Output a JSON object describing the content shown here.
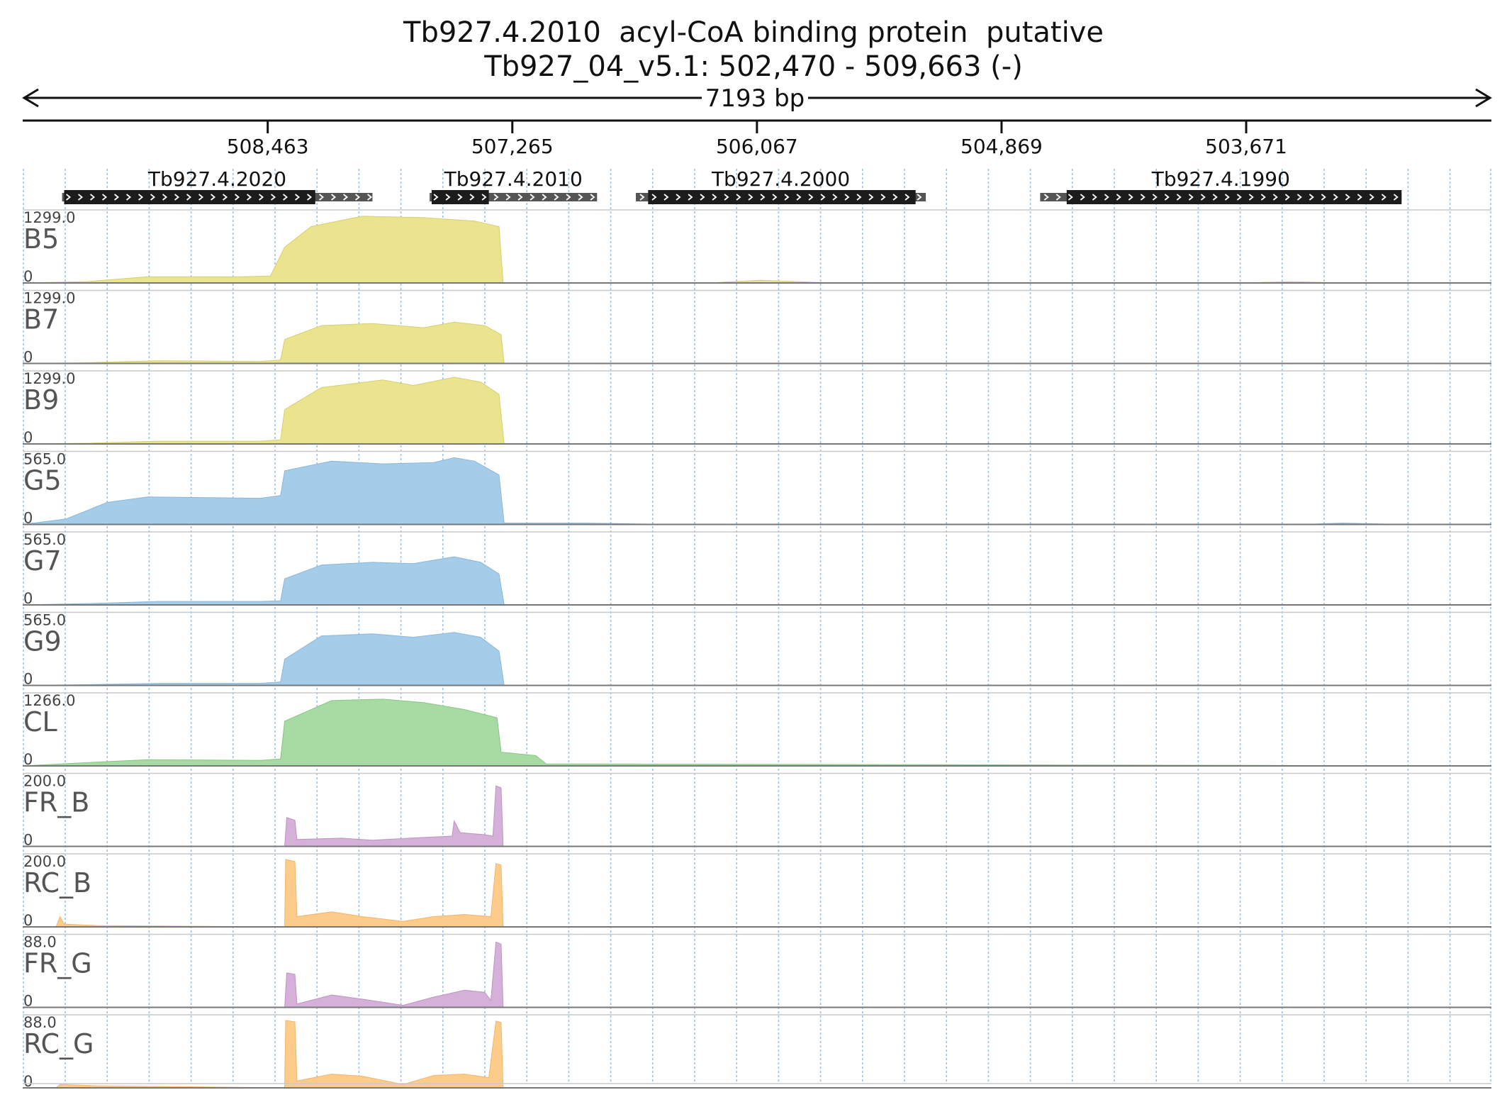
{
  "header": {
    "title": "Tb927.4.2010  acyl-CoA binding protein  putative",
    "location": "Tb927_04_v5.1: 502,470 - 509,663 (-)"
  },
  "ruler": {
    "span_label": "7193 bp",
    "start_bp": 509663,
    "end_bp": 502470,
    "ticks": [
      {
        "bp": 508463,
        "label": "508,463"
      },
      {
        "bp": 507265,
        "label": "507,265"
      },
      {
        "bp": 506067,
        "label": "506,067"
      },
      {
        "bp": 504869,
        "label": "504,869"
      },
      {
        "bp": 503671,
        "label": "503,671"
      }
    ]
  },
  "genes": [
    {
      "name": "Tb927.4.2020",
      "start": 509470,
      "end": 507950,
      "cds_start": 509460,
      "cds_end": 508230
    },
    {
      "name": "Tb927.4.2010",
      "start": 507670,
      "end": 506850,
      "cds_start": 507660,
      "cds_end": 507380
    },
    {
      "name": "Tb927.4.2000",
      "start": 506660,
      "end": 505240,
      "cds_start": 506600,
      "cds_end": 505290
    },
    {
      "name": "Tb927.4.1990",
      "start": 504680,
      "end": 502910,
      "cds_start": 504550,
      "cds_end": 502910
    }
  ],
  "tracks": [
    {
      "name": "B5",
      "max_label": "1299.0",
      "zero_label": "0",
      "color": "#ebe48f",
      "stroke": "#d7cf6e",
      "profile": [
        [
          509663,
          0
        ],
        [
          509350,
          0.02
        ],
        [
          509050,
          0.09
        ],
        [
          508600,
          0.09
        ],
        [
          508450,
          0.1
        ],
        [
          508380,
          0.52
        ],
        [
          508250,
          0.82
        ],
        [
          508000,
          0.97
        ],
        [
          507700,
          0.95
        ],
        [
          507450,
          0.9
        ],
        [
          507330,
          0.82
        ],
        [
          507310,
          0.0
        ],
        [
          506300,
          0.0
        ],
        [
          506050,
          0.04
        ],
        [
          505700,
          0.0
        ],
        [
          503700,
          0.0
        ],
        [
          503450,
          0.02
        ],
        [
          503200,
          0.0
        ],
        [
          502470,
          0
        ]
      ]
    },
    {
      "name": "B7",
      "max_label": "1299.0",
      "zero_label": "0",
      "color": "#ebe48f",
      "stroke": "#d7cf6e",
      "profile": [
        [
          509663,
          0
        ],
        [
          509350,
          0.01
        ],
        [
          509000,
          0.04
        ],
        [
          508500,
          0.03
        ],
        [
          508400,
          0.05
        ],
        [
          508380,
          0.35
        ],
        [
          508200,
          0.55
        ],
        [
          507950,
          0.58
        ],
        [
          507700,
          0.52
        ],
        [
          507550,
          0.6
        ],
        [
          507400,
          0.55
        ],
        [
          507320,
          0.42
        ],
        [
          507305,
          0.0
        ],
        [
          502470,
          0
        ]
      ]
    },
    {
      "name": "B9",
      "max_label": "1299.0",
      "zero_label": "0",
      "color": "#ebe48f",
      "stroke": "#d7cf6e",
      "profile": [
        [
          509663,
          0
        ],
        [
          509350,
          0.01
        ],
        [
          509000,
          0.04
        ],
        [
          508500,
          0.04
        ],
        [
          508400,
          0.06
        ],
        [
          508380,
          0.5
        ],
        [
          508200,
          0.82
        ],
        [
          507900,
          0.93
        ],
        [
          507750,
          0.85
        ],
        [
          507550,
          0.97
        ],
        [
          507420,
          0.9
        ],
        [
          507330,
          0.72
        ],
        [
          507305,
          0.0
        ],
        [
          502470,
          0
        ]
      ]
    },
    {
      "name": "G5",
      "max_label": "565.0",
      "zero_label": "0",
      "color": "#a5cce9",
      "stroke": "#8ab8db",
      "profile": [
        [
          509663,
          0
        ],
        [
          509450,
          0.08
        ],
        [
          509250,
          0.32
        ],
        [
          509050,
          0.4
        ],
        [
          508500,
          0.38
        ],
        [
          508400,
          0.42
        ],
        [
          508380,
          0.78
        ],
        [
          508150,
          0.92
        ],
        [
          507900,
          0.88
        ],
        [
          507650,
          0.9
        ],
        [
          507550,
          0.97
        ],
        [
          507450,
          0.92
        ],
        [
          507330,
          0.72
        ],
        [
          507305,
          0.02
        ],
        [
          506900,
          0.02
        ],
        [
          506500,
          0.0
        ],
        [
          503400,
          0.0
        ],
        [
          503200,
          0.02
        ],
        [
          502900,
          0.0
        ],
        [
          502470,
          0
        ]
      ]
    },
    {
      "name": "G7",
      "max_label": "565.0",
      "zero_label": "0",
      "color": "#a5cce9",
      "stroke": "#8ab8db",
      "profile": [
        [
          509663,
          0
        ],
        [
          509350,
          0.02
        ],
        [
          509000,
          0.05
        ],
        [
          508500,
          0.05
        ],
        [
          508400,
          0.06
        ],
        [
          508380,
          0.38
        ],
        [
          508200,
          0.58
        ],
        [
          507950,
          0.62
        ],
        [
          507750,
          0.6
        ],
        [
          507550,
          0.7
        ],
        [
          507420,
          0.62
        ],
        [
          507330,
          0.45
        ],
        [
          507305,
          0.0
        ],
        [
          502470,
          0
        ]
      ]
    },
    {
      "name": "G9",
      "max_label": "565.0",
      "zero_label": "0",
      "color": "#a5cce9",
      "stroke": "#8ab8db",
      "profile": [
        [
          509663,
          0
        ],
        [
          509350,
          0.01
        ],
        [
          509000,
          0.03
        ],
        [
          508500,
          0.03
        ],
        [
          508400,
          0.05
        ],
        [
          508380,
          0.38
        ],
        [
          508200,
          0.72
        ],
        [
          507950,
          0.75
        ],
        [
          507750,
          0.7
        ],
        [
          507550,
          0.77
        ],
        [
          507420,
          0.7
        ],
        [
          507330,
          0.5
        ],
        [
          507305,
          0.0
        ],
        [
          502470,
          0
        ]
      ]
    },
    {
      "name": "CL",
      "max_label": "1266.0",
      "zero_label": "0",
      "color": "#a8dba4",
      "stroke": "#86c683",
      "profile": [
        [
          509663,
          0
        ],
        [
          509400,
          0.04
        ],
        [
          509050,
          0.09
        ],
        [
          508500,
          0.08
        ],
        [
          508400,
          0.1
        ],
        [
          508380,
          0.65
        ],
        [
          508150,
          0.95
        ],
        [
          507900,
          0.97
        ],
        [
          507700,
          0.92
        ],
        [
          507500,
          0.82
        ],
        [
          507340,
          0.7
        ],
        [
          507320,
          0.2
        ],
        [
          507150,
          0.15
        ],
        [
          507100,
          0.03
        ],
        [
          502470,
          0
        ]
      ]
    },
    {
      "name": "FR_B",
      "max_label": "200.0",
      "zero_label": "0",
      "color": "#d5b0d8",
      "stroke": "#bf93c3",
      "profile": [
        [
          509663,
          0
        ],
        [
          508380,
          0.0
        ],
        [
          508370,
          0.42
        ],
        [
          508330,
          0.38
        ],
        [
          508320,
          0.1
        ],
        [
          508100,
          0.12
        ],
        [
          507950,
          0.09
        ],
        [
          507700,
          0.13
        ],
        [
          507560,
          0.15
        ],
        [
          507550,
          0.37
        ],
        [
          507520,
          0.2
        ],
        [
          507400,
          0.17
        ],
        [
          507360,
          0.15
        ],
        [
          507345,
          0.88
        ],
        [
          507320,
          0.85
        ],
        [
          507310,
          0.0
        ],
        [
          502470,
          0
        ]
      ]
    },
    {
      "name": "RC_B",
      "max_label": "200.0",
      "zero_label": "0",
      "color": "#fdcc8a",
      "stroke": "#f2b56a",
      "profile": [
        [
          509663,
          0
        ],
        [
          509500,
          0.0
        ],
        [
          509480,
          0.15
        ],
        [
          509460,
          0.04
        ],
        [
          509300,
          0.02
        ],
        [
          508380,
          0.0
        ],
        [
          508375,
          0.98
        ],
        [
          508330,
          0.95
        ],
        [
          508320,
          0.15
        ],
        [
          508150,
          0.22
        ],
        [
          508000,
          0.15
        ],
        [
          507800,
          0.08
        ],
        [
          507650,
          0.15
        ],
        [
          507500,
          0.18
        ],
        [
          507370,
          0.15
        ],
        [
          507345,
          0.92
        ],
        [
          507320,
          0.9
        ],
        [
          507310,
          0.0
        ],
        [
          502470,
          0
        ]
      ]
    },
    {
      "name": "FR_G",
      "max_label": "88.0",
      "zero_label": "0",
      "color": "#d5b0d8",
      "stroke": "#bf93c3",
      "profile": [
        [
          509663,
          0
        ],
        [
          508380,
          0.0
        ],
        [
          508370,
          0.5
        ],
        [
          508330,
          0.48
        ],
        [
          508320,
          0.05
        ],
        [
          508150,
          0.18
        ],
        [
          508000,
          0.12
        ],
        [
          507800,
          0.03
        ],
        [
          507650,
          0.15
        ],
        [
          507500,
          0.25
        ],
        [
          507400,
          0.22
        ],
        [
          507370,
          0.1
        ],
        [
          507345,
          0.95
        ],
        [
          507320,
          0.92
        ],
        [
          507310,
          0.0
        ],
        [
          502470,
          0
        ]
      ]
    },
    {
      "name": "RC_G",
      "max_label": "88.0",
      "zero_label": "0",
      "color": "#fdcc8a",
      "stroke": "#f2b56a",
      "profile": [
        [
          509663,
          0
        ],
        [
          509500,
          0.0
        ],
        [
          509480,
          0.05
        ],
        [
          509300,
          0.03
        ],
        [
          508380,
          0.0
        ],
        [
          508375,
          0.98
        ],
        [
          508330,
          0.96
        ],
        [
          508320,
          0.1
        ],
        [
          508150,
          0.2
        ],
        [
          508000,
          0.17
        ],
        [
          507800,
          0.05
        ],
        [
          507650,
          0.18
        ],
        [
          507500,
          0.2
        ],
        [
          507380,
          0.15
        ],
        [
          507345,
          0.97
        ],
        [
          507320,
          0.95
        ],
        [
          507310,
          0.0
        ],
        [
          502470,
          0
        ]
      ]
    }
  ]
}
